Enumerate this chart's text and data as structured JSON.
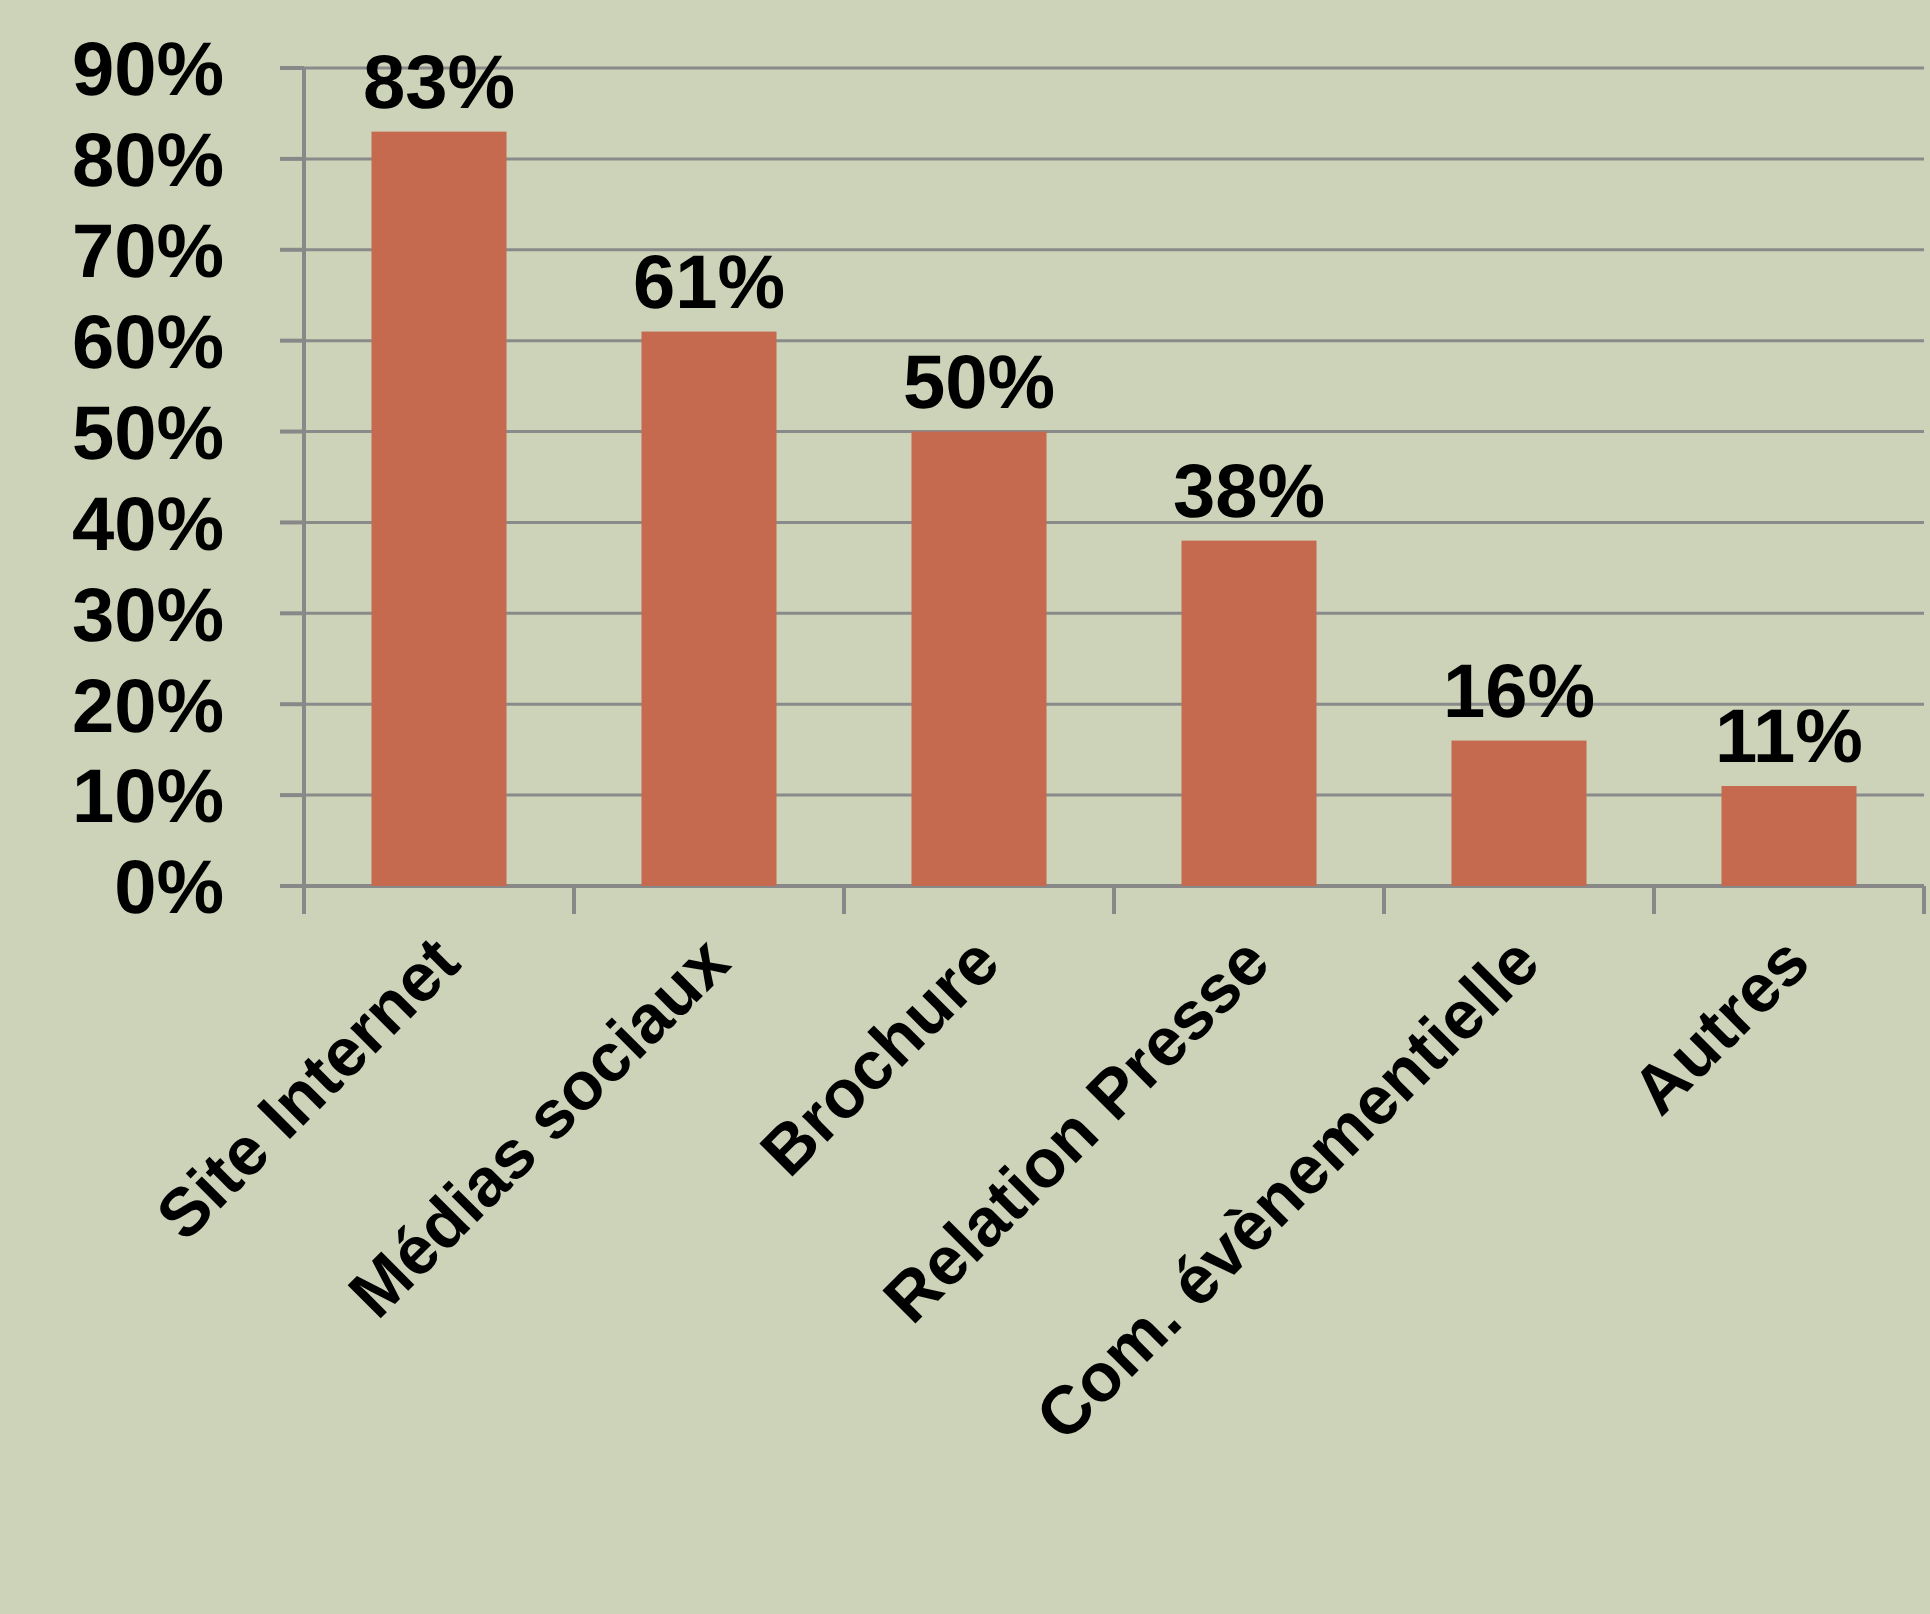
{
  "chart_data": {
    "type": "bar",
    "categories": [
      "Site Internet",
      "Médias sociaux",
      "Brochure",
      "Relation Presse",
      "Com. évènementielle",
      "Autres"
    ],
    "values": [
      83,
      61,
      50,
      38,
      16,
      11
    ],
    "color": "#c5694f",
    "value_labels": [
      "83%",
      "61%",
      "50%",
      "38%",
      "16%",
      "11%"
    ],
    "ylim": [
      0,
      90
    ],
    "yticks": [
      {
        "value": 0,
        "label": "0%"
      },
      {
        "value": 10,
        "label": "10%"
      },
      {
        "value": 20,
        "label": "20%"
      },
      {
        "value": 30,
        "label": "30%"
      },
      {
        "value": 40,
        "label": "40%"
      },
      {
        "value": 50,
        "label": "50%"
      },
      {
        "value": 60,
        "label": "60%"
      },
      {
        "value": 70,
        "label": "70%"
      },
      {
        "value": 80,
        "label": "80%"
      },
      {
        "value": 90,
        "label": "90%"
      }
    ],
    "grid": "y"
  }
}
